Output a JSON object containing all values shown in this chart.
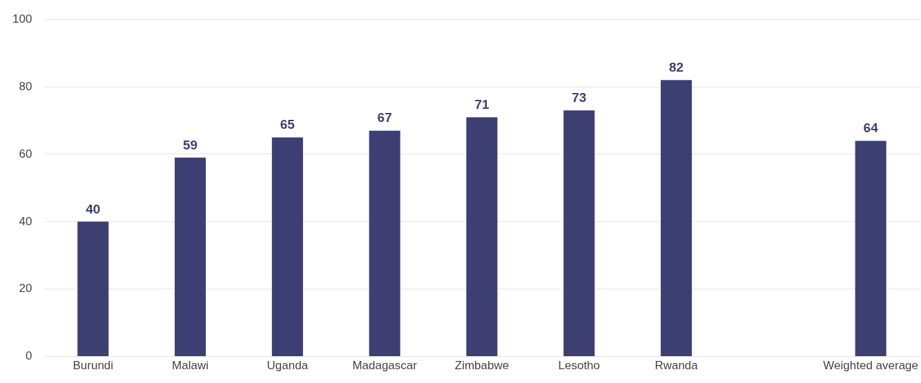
{
  "chart_data": {
    "type": "bar",
    "categories": [
      "Burundi",
      "Malawi",
      "Uganda",
      "Madagascar",
      "Zimbabwe",
      "Lesotho",
      "Rwanda",
      null,
      "Weighted average"
    ],
    "values": [
      40,
      59,
      65,
      67,
      71,
      73,
      82,
      null,
      64
    ],
    "color": "#3d3f72",
    "ylim": [
      0,
      100
    ],
    "yticks": [
      0,
      20,
      40,
      60,
      80,
      100
    ],
    "grid": "y",
    "data_labels": true
  }
}
